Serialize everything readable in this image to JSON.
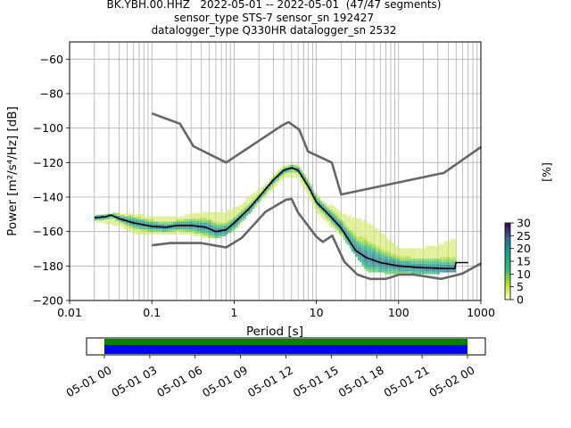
{
  "title_lines": [
    "BK.YBH.00.HHZ   2022-05-01 -- 2022-05-01  (47/47 segments)",
    "sensor_type STS-7 sensor_sn 192427",
    "datalogger_type Q330HR datalogger_sn 2532"
  ],
  "chart_data": {
    "type": "heatmap",
    "xlabel": "Period [s]",
    "ylabel": "Power [m²/s⁴/Hz] [dB]",
    "xscale": "log",
    "xlim": [
      0.01,
      1000
    ],
    "ylim": [
      -200,
      -50
    ],
    "x_ticks": [
      0.01,
      0.1,
      1,
      10,
      100,
      1000
    ],
    "x_tick_labels": [
      "0.01",
      "0.1",
      "1",
      "10",
      "100",
      "1000"
    ],
    "y_ticks": [
      -200,
      -180,
      -160,
      -140,
      -120,
      -100,
      -80,
      -60
    ],
    "y_tick_labels": [
      "−200",
      "−180",
      "−160",
      "−140",
      "−120",
      "−100",
      "−80",
      "−60"
    ],
    "grid": true,
    "colorbar": {
      "label": "[%]",
      "min": 0,
      "max": 30,
      "ticks": [
        0,
        5,
        10,
        15,
        20,
        25,
        30
      ],
      "tick_labels": [
        "0",
        "5",
        "10",
        "15",
        "20",
        "25",
        "30"
      ],
      "colormap": "viridis (reversed)"
    },
    "series": [
      {
        "role": "noise-model-high",
        "color": "#666666",
        "points": [
          [
            0.1,
            -91.5
          ],
          [
            0.22,
            -97.5
          ],
          [
            0.32,
            -110.5
          ],
          [
            0.8,
            -120
          ],
          [
            3.8,
            -98.5
          ],
          [
            4.6,
            -96.5
          ],
          [
            6.2,
            -101
          ],
          [
            7.9,
            -113.5
          ],
          [
            15.4,
            -120
          ],
          [
            20,
            -138.5
          ],
          [
            354.8,
            -126
          ],
          [
            1000,
            -111
          ]
        ]
      },
      {
        "role": "noise-model-low",
        "color": "#666666",
        "points": [
          [
            0.1,
            -168
          ],
          [
            0.17,
            -166.7
          ],
          [
            0.4,
            -166.7
          ],
          [
            0.8,
            -169.2
          ],
          [
            1.24,
            -163.7
          ],
          [
            2.4,
            -148.6
          ],
          [
            4.3,
            -141.5
          ],
          [
            5,
            -141.1
          ],
          [
            6,
            -149
          ],
          [
            10,
            -163
          ],
          [
            12,
            -166
          ],
          [
            15.6,
            -162.4
          ],
          [
            21.9,
            -177.6
          ],
          [
            31.6,
            -185
          ],
          [
            45,
            -187.5
          ],
          [
            70,
            -187.5
          ],
          [
            101,
            -185
          ],
          [
            154,
            -185
          ],
          [
            328,
            -187.5
          ],
          [
            600,
            -184.4
          ],
          [
            1000,
            -178.5
          ]
        ]
      },
      {
        "role": "mode",
        "color": "#000000",
        "points": [
          [
            0.02,
            -152
          ],
          [
            0.027,
            -151.5
          ],
          [
            0.032,
            -150.5
          ],
          [
            0.04,
            -152.5
          ],
          [
            0.06,
            -155
          ],
          [
            0.1,
            -157
          ],
          [
            0.15,
            -157.5
          ],
          [
            0.2,
            -156.5
          ],
          [
            0.3,
            -156.5
          ],
          [
            0.45,
            -157.5
          ],
          [
            0.6,
            -160
          ],
          [
            0.8,
            -159
          ],
          [
            1,
            -155
          ],
          [
            1.5,
            -147
          ],
          [
            2,
            -140
          ],
          [
            3,
            -130
          ],
          [
            4,
            -124.5
          ],
          [
            5,
            -123
          ],
          [
            6,
            -124.5
          ],
          [
            8,
            -134
          ],
          [
            10,
            -143
          ],
          [
            14,
            -150
          ],
          [
            20,
            -158
          ],
          [
            30,
            -171
          ],
          [
            40,
            -175
          ],
          [
            60,
            -178
          ],
          [
            100,
            -180
          ],
          [
            200,
            -181
          ],
          [
            400,
            -181.5
          ],
          [
            480,
            -181.5
          ],
          [
            500,
            -178
          ],
          [
            700,
            -178
          ]
        ]
      }
    ],
    "density_ranges": [
      {
        "period": 0.02,
        "low": -153,
        "high": -151
      },
      {
        "period": 0.04,
        "low": -156,
        "high": -150
      },
      {
        "period": 0.06,
        "low": -160,
        "high": -150
      },
      {
        "period": 0.1,
        "low": -161,
        "high": -152
      },
      {
        "period": 0.2,
        "low": -160,
        "high": -152
      },
      {
        "period": 0.3,
        "low": -161,
        "high": -150
      },
      {
        "period": 0.5,
        "low": -163,
        "high": -149
      },
      {
        "period": 0.7,
        "low": -162,
        "high": -150
      },
      {
        "period": 1,
        "low": -158,
        "high": -147
      },
      {
        "period": 2,
        "low": -142,
        "high": -136
      },
      {
        "period": 4,
        "low": -127,
        "high": -122
      },
      {
        "period": 6,
        "low": -128,
        "high": -122
      },
      {
        "period": 10,
        "low": -148,
        "high": -140
      },
      {
        "period": 20,
        "low": -162,
        "high": -150
      },
      {
        "period": 40,
        "low": -182,
        "high": -155
      },
      {
        "period": 100,
        "low": -184,
        "high": -170
      },
      {
        "period": 200,
        "low": -184,
        "high": -170
      },
      {
        "period": 500,
        "low": -182,
        "high": -165
      }
    ]
  },
  "time_strip": {
    "tick_labels": [
      "05-01 00",
      "05-01 03",
      "05-01 06",
      "05-01 09",
      "05-01 12",
      "05-01 15",
      "05-01 18",
      "05-01 21",
      "05-02 00"
    ],
    "upper_color": "#008000",
    "lower_color": "#0000ff"
  }
}
